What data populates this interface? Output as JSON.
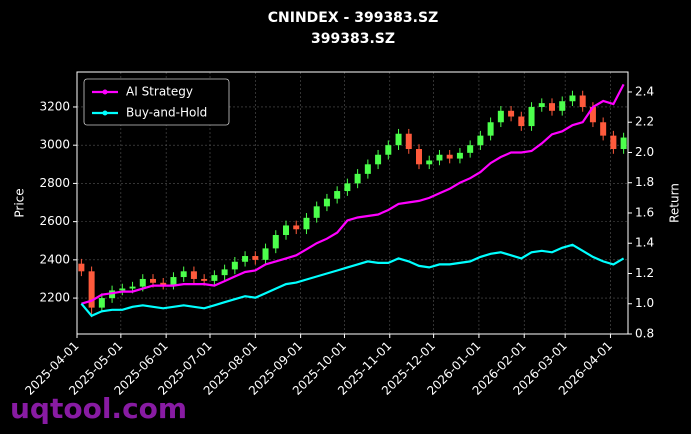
{
  "chart_data": {
    "type": "candlestick",
    "title": "CNINDEX - 399383.SZ",
    "subtitle": "399383.SZ",
    "ylabel": "Price",
    "y2label": "Return",
    "watermark": "uqtool.com",
    "x": [
      "2025-04-04",
      "2025-04-11",
      "2025-04-18",
      "2025-04-25",
      "2025-05-02",
      "2025-05-09",
      "2025-05-16",
      "2025-05-23",
      "2025-05-30",
      "2025-06-06",
      "2025-06-13",
      "2025-06-20",
      "2025-06-27",
      "2025-07-04",
      "2025-07-11",
      "2025-07-18",
      "2025-07-25",
      "2025-08-01",
      "2025-08-08",
      "2025-08-15",
      "2025-08-22",
      "2025-08-29",
      "2025-09-05",
      "2025-09-12",
      "2025-09-19",
      "2025-09-26",
      "2025-10-03",
      "2025-10-10",
      "2025-10-17",
      "2025-10-24",
      "2025-10-31",
      "2025-11-07",
      "2025-11-14",
      "2025-11-21",
      "2025-11-28",
      "2025-12-05",
      "2025-12-12",
      "2025-12-19",
      "2025-12-26",
      "2026-01-02",
      "2026-01-09",
      "2026-01-16",
      "2026-01-23",
      "2026-01-30",
      "2026-02-06",
      "2026-02-13",
      "2026-02-20",
      "2026-02-27",
      "2026-03-06",
      "2026-03-13",
      "2026-03-20",
      "2026-03-27",
      "2026-04-03",
      "2026-04-10"
    ],
    "open": [
      2380,
      2340,
      2150,
      2200,
      2240,
      2250,
      2260,
      2300,
      2280,
      2270,
      2310,
      2340,
      2300,
      2290,
      2320,
      2350,
      2390,
      2420,
      2400,
      2460,
      2530,
      2580,
      2560,
      2620,
      2680,
      2720,
      2760,
      2800,
      2850,
      2900,
      2950,
      3000,
      3060,
      2980,
      2900,
      2920,
      2950,
      2930,
      2960,
      3000,
      3050,
      3120,
      3180,
      3150,
      3100,
      3200,
      3220,
      3180,
      3230,
      3260,
      3200,
      3120,
      3050,
      2980
    ],
    "high": [
      2405,
      2365,
      2225,
      2265,
      2275,
      2285,
      2325,
      2325,
      2305,
      2335,
      2365,
      2365,
      2325,
      2345,
      2375,
      2415,
      2445,
      2445,
      2485,
      2555,
      2605,
      2605,
      2645,
      2705,
      2745,
      2785,
      2825,
      2875,
      2925,
      2975,
      3025,
      3085,
      3085,
      3005,
      2945,
      2975,
      2975,
      2985,
      3025,
      3075,
      3145,
      3205,
      3205,
      3175,
      3225,
      3245,
      3245,
      3255,
      3285,
      3285,
      3225,
      3145,
      3075,
      3065
    ],
    "low": [
      2315,
      2100,
      2125,
      2175,
      2215,
      2225,
      2235,
      2255,
      2245,
      2245,
      2285,
      2275,
      2265,
      2265,
      2295,
      2325,
      2365,
      2375,
      2375,
      2435,
      2505,
      2535,
      2535,
      2595,
      2655,
      2695,
      2735,
      2775,
      2825,
      2875,
      2925,
      2975,
      2955,
      2875,
      2875,
      2895,
      2905,
      2905,
      2935,
      2975,
      3025,
      3095,
      3125,
      3075,
      3075,
      3175,
      3155,
      3155,
      3205,
      3175,
      3095,
      3025,
      2955,
      2955
    ],
    "close": [
      2340,
      2150,
      2200,
      2240,
      2250,
      2260,
      2300,
      2280,
      2270,
      2310,
      2340,
      2300,
      2290,
      2320,
      2350,
      2390,
      2420,
      2400,
      2460,
      2530,
      2580,
      2560,
      2620,
      2680,
      2720,
      2760,
      2800,
      2850,
      2900,
      2950,
      3000,
      3060,
      2980,
      2900,
      2920,
      2950,
      2930,
      2960,
      3000,
      3050,
      3120,
      3180,
      3150,
      3100,
      3200,
      3220,
      3180,
      3230,
      3260,
      3200,
      3120,
      3050,
      2980,
      3040
    ],
    "up_color": "#4cff4c",
    "down_color": "#ff5a3c",
    "series": [
      {
        "name": "AI Strategy",
        "color": "#ff00ff",
        "axis": "y2",
        "values": [
          1.0,
          1.02,
          1.06,
          1.07,
          1.08,
          1.08,
          1.1,
          1.12,
          1.12,
          1.12,
          1.13,
          1.13,
          1.13,
          1.12,
          1.15,
          1.18,
          1.21,
          1.22,
          1.26,
          1.28,
          1.3,
          1.32,
          1.36,
          1.4,
          1.43,
          1.47,
          1.55,
          1.57,
          1.58,
          1.59,
          1.62,
          1.66,
          1.67,
          1.68,
          1.7,
          1.73,
          1.76,
          1.8,
          1.83,
          1.87,
          1.93,
          1.97,
          2.0,
          2.0,
          2.01,
          2.06,
          2.12,
          2.14,
          2.18,
          2.2,
          2.3,
          2.34,
          2.32,
          2.45
        ]
      },
      {
        "name": "Buy-and-Hold",
        "color": "#00ffff",
        "axis": "y2",
        "values": [
          1.0,
          0.92,
          0.95,
          0.96,
          0.96,
          0.98,
          0.99,
          0.98,
          0.97,
          0.98,
          0.99,
          0.98,
          0.97,
          0.99,
          1.01,
          1.03,
          1.05,
          1.04,
          1.07,
          1.1,
          1.13,
          1.14,
          1.16,
          1.18,
          1.2,
          1.22,
          1.24,
          1.26,
          1.28,
          1.27,
          1.27,
          1.3,
          1.28,
          1.25,
          1.24,
          1.26,
          1.26,
          1.27,
          1.28,
          1.31,
          1.33,
          1.34,
          1.32,
          1.3,
          1.34,
          1.35,
          1.34,
          1.37,
          1.39,
          1.35,
          1.31,
          1.28,
          1.26,
          1.3
        ]
      }
    ],
    "xlim": [
      "2025-04-01",
      "2026-04-13"
    ],
    "xticks": [
      "2025-04-01",
      "2025-05-01",
      "2025-06-01",
      "2025-07-01",
      "2025-08-01",
      "2025-09-01",
      "2025-10-01",
      "2025-11-01",
      "2025-12-01",
      "2026-01-01",
      "2026-02-01",
      "2026-03-01",
      "2026-04-01"
    ],
    "ylim": [
      2012,
      3383
    ],
    "yticks": [
      2200,
      2400,
      2600,
      2800,
      3000,
      3200
    ],
    "y2lim": [
      0.8,
      2.532
    ],
    "y2ticks": [
      0.8,
      {
        "value": 1,
        "label": "1.0"
      },
      1.2,
      1.4,
      1.6,
      1.8,
      {
        "value": 2,
        "label": "2.0"
      },
      2.2,
      2.4
    ],
    "grid": true,
    "legend": "upper left"
  }
}
